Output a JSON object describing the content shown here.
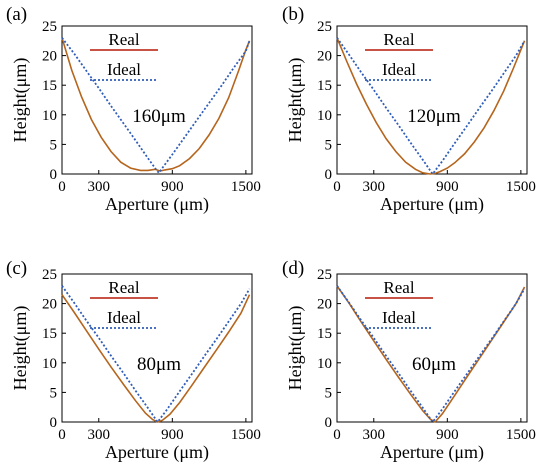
{
  "colors": {
    "real": "#b5651d",
    "ideal": "#2f5db8",
    "real_legend": "#c0392b",
    "axis": "#000000"
  },
  "chart_data": [
    {
      "type": "line",
      "panel_label": "(a)",
      "annotation": "160μm",
      "xlabel": "Aperture (μm)",
      "ylabel": "Height(μm)",
      "xlim": [
        0,
        1550
      ],
      "ylim": [
        0,
        25
      ],
      "x_ticks": [
        0,
        300,
        900,
        1500
      ],
      "y_ticks": [
        0,
        5,
        10,
        15,
        20,
        25
      ],
      "legend": [
        "Real",
        "Ideal"
      ],
      "series": [
        {
          "name": "Real",
          "x": [
            0,
            80,
            160,
            240,
            320,
            400,
            480,
            560,
            640,
            700,
            760,
            800,
            840,
            900,
            960,
            1040,
            1120,
            1200,
            1280,
            1360,
            1440,
            1500,
            1530
          ],
          "y": [
            23,
            17.5,
            13,
            9.2,
            6.2,
            3.8,
            2.0,
            1.0,
            0.6,
            0.6,
            0.8,
            0.5,
            0.7,
            0.9,
            1.4,
            2.6,
            4.3,
            6.6,
            9.4,
            12.9,
            17.4,
            21.0,
            22.5
          ]
        },
        {
          "name": "Ideal",
          "x": [
            0,
            100,
            200,
            300,
            400,
            500,
            600,
            700,
            770,
            790,
            850,
            900,
            1000,
            1100,
            1200,
            1300,
            1400,
            1500,
            1530
          ],
          "y": [
            23,
            20.3,
            17.4,
            14.5,
            11.5,
            8.6,
            5.7,
            2.7,
            0.7,
            0.2,
            1.9,
            3.3,
            6.2,
            9.1,
            12.0,
            14.9,
            17.9,
            20.8,
            22.5
          ]
        }
      ]
    },
    {
      "type": "line",
      "panel_label": "(b)",
      "annotation": "120μm",
      "xlabel": "Aperture (μm)",
      "ylabel": "Height(μm)",
      "xlim": [
        0,
        1550
      ],
      "ylim": [
        0,
        25
      ],
      "x_ticks": [
        0,
        300,
        900,
        1500
      ],
      "y_ticks": [
        0,
        5,
        10,
        15,
        20,
        25
      ],
      "legend": [
        "Real",
        "Ideal"
      ],
      "series": [
        {
          "name": "Real",
          "x": [
            0,
            80,
            160,
            240,
            320,
            400,
            480,
            560,
            640,
            700,
            760,
            800,
            840,
            900,
            960,
            1040,
            1120,
            1200,
            1280,
            1360,
            1440,
            1500,
            1530
          ],
          "y": [
            23,
            19.0,
            15.2,
            11.8,
            8.7,
            6.0,
            3.8,
            2.0,
            0.8,
            0.2,
            0.0,
            0.1,
            0.4,
            1.0,
            1.9,
            3.4,
            5.4,
            7.8,
            10.7,
            14.0,
            17.9,
            21.0,
            22.5
          ]
        },
        {
          "name": "Ideal",
          "x": [
            0,
            100,
            200,
            300,
            400,
            500,
            600,
            700,
            780,
            860,
            960,
            1060,
            1160,
            1260,
            1360,
            1460,
            1530
          ],
          "y": [
            23,
            20.1,
            17.1,
            14.2,
            11.2,
            8.3,
            5.3,
            2.4,
            0.0,
            2.2,
            5.2,
            8.1,
            11.1,
            14.0,
            17.0,
            20.0,
            22.5
          ]
        }
      ]
    },
    {
      "type": "line",
      "panel_label": "(c)",
      "annotation": "80μm",
      "xlabel": "Aperture (μm)",
      "ylabel": "Height(μm)",
      "xlim": [
        0,
        1550
      ],
      "ylim": [
        0,
        25
      ],
      "x_ticks": [
        0,
        300,
        900,
        1500
      ],
      "y_ticks": [
        0,
        5,
        10,
        15,
        20,
        25
      ],
      "legend": [
        "Real",
        "Ideal"
      ],
      "series": [
        {
          "name": "Real",
          "x": [
            0,
            100,
            200,
            300,
            400,
            500,
            600,
            680,
            740,
            780,
            820,
            880,
            960,
            1060,
            1160,
            1260,
            1360,
            1460,
            1530
          ],
          "y": [
            21.5,
            18.5,
            15.4,
            12.3,
            9.3,
            6.4,
            3.6,
            1.5,
            0.4,
            0.0,
            0.3,
            1.3,
            3.3,
            6.2,
            9.2,
            12.2,
            15.2,
            18.4,
            21.5
          ]
        },
        {
          "name": "Ideal",
          "x": [
            0,
            100,
            200,
            300,
            400,
            500,
            600,
            700,
            780,
            860,
            960,
            1060,
            1160,
            1260,
            1360,
            1460,
            1530
          ],
          "y": [
            23,
            20.1,
            17.1,
            14.2,
            11.2,
            8.3,
            5.3,
            2.4,
            0.0,
            2.2,
            5.2,
            8.1,
            11.1,
            14.0,
            17.0,
            20.0,
            22.5
          ]
        }
      ]
    },
    {
      "type": "line",
      "panel_label": "(d)",
      "annotation": "60μm",
      "xlabel": "Aperture (μm)",
      "ylabel": "Height(μm)",
      "xlim": [
        0,
        1550
      ],
      "ylim": [
        0,
        25
      ],
      "x_ticks": [
        0,
        300,
        900,
        1500
      ],
      "y_ticks": [
        0,
        5,
        10,
        15,
        20,
        25
      ],
      "legend": [
        "Real",
        "Ideal"
      ],
      "series": [
        {
          "name": "Real",
          "x": [
            0,
            100,
            200,
            300,
            400,
            500,
            600,
            700,
            760,
            800,
            860,
            960,
            1060,
            1160,
            1260,
            1360,
            1460,
            1530
          ],
          "y": [
            23,
            20.0,
            16.8,
            13.7,
            10.6,
            7.6,
            4.7,
            1.9,
            0.5,
            0.0,
            1.4,
            4.5,
            7.6,
            10.7,
            13.8,
            16.9,
            20.0,
            22.8
          ]
        },
        {
          "name": "Ideal",
          "x": [
            0,
            100,
            200,
            300,
            400,
            500,
            600,
            700,
            780,
            860,
            960,
            1060,
            1160,
            1260,
            1360,
            1460,
            1530
          ],
          "y": [
            23,
            20.1,
            17.1,
            14.2,
            11.2,
            8.3,
            5.3,
            2.4,
            0.0,
            2.2,
            5.2,
            8.1,
            11.1,
            14.0,
            17.0,
            20.0,
            22.5
          ]
        }
      ]
    }
  ]
}
